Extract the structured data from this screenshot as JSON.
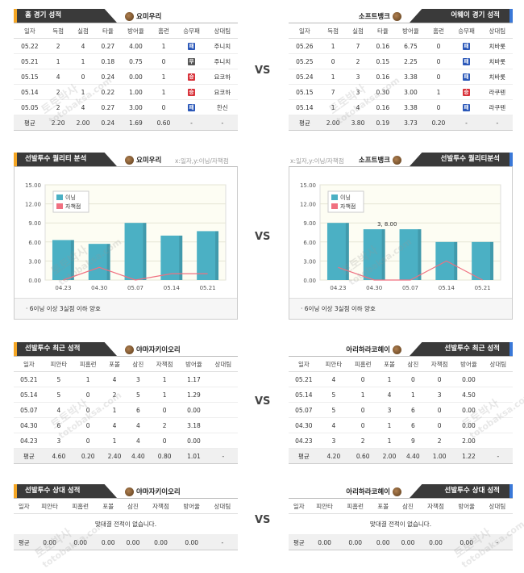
{
  "vs_label": "VS",
  "home_record": {
    "title": "홈 경기 성적",
    "team": "요미우리",
    "headers": [
      "일자",
      "득점",
      "실점",
      "타율",
      "방어율",
      "홈런",
      "승무패",
      "상대팀"
    ],
    "rows": [
      [
        "05.22",
        "2",
        "4",
        "0.27",
        "4.00",
        "1",
        "패",
        "주니치"
      ],
      [
        "05.21",
        "1",
        "1",
        "0.18",
        "0.75",
        "0",
        "무",
        "주니치"
      ],
      [
        "05.15",
        "4",
        "0",
        "0.24",
        "0.00",
        "1",
        "승",
        "요코하"
      ],
      [
        "05.14",
        "2",
        "1",
        "0.22",
        "1.00",
        "1",
        "승",
        "요코하"
      ],
      [
        "05.05",
        "2",
        "4",
        "0.27",
        "3.00",
        "0",
        "패",
        "한신"
      ]
    ],
    "avg": [
      "평균",
      "2.20",
      "2.00",
      "0.24",
      "1.69",
      "0.60",
      "-",
      "-"
    ]
  },
  "away_record": {
    "title": "어웨이 경기 성적",
    "team": "소프트뱅크",
    "headers": [
      "일자",
      "득점",
      "실점",
      "타율",
      "방어율",
      "홈런",
      "승무패",
      "상대팀"
    ],
    "rows": [
      [
        "05.26",
        "1",
        "7",
        "0.16",
        "6.75",
        "0",
        "패",
        "치바롯"
      ],
      [
        "05.25",
        "0",
        "2",
        "0.15",
        "2.25",
        "0",
        "패",
        "치바롯"
      ],
      [
        "05.24",
        "1",
        "3",
        "0.16",
        "3.38",
        "0",
        "패",
        "치바롯"
      ],
      [
        "05.15",
        "7",
        "3",
        "0.30",
        "3.00",
        "1",
        "승",
        "라쿠텐"
      ],
      [
        "05.14",
        "1",
        "4",
        "0.16",
        "3.38",
        "0",
        "패",
        "라쿠텐"
      ]
    ],
    "avg": [
      "평균",
      "2.00",
      "3.80",
      "0.19",
      "3.73",
      "0.20",
      "-",
      "-"
    ]
  },
  "quality_left": {
    "title": "선발투수 퀄리티 분석",
    "team": "요미우리",
    "sub": "x:일자,y:이닝/자책점",
    "note": "· 6이닝 이상 3실점 이하 양호"
  },
  "quality_right": {
    "title": "선발투수 퀄리티분석",
    "team": "소프트뱅크",
    "sub": "x:일자,y:이닝/자책점",
    "note": "· 6이닝 이상 3실점 이하 양호"
  },
  "chart_data": [
    {
      "type": "bar",
      "categories": [
        "04.23",
        "04.30",
        "05.07",
        "05.14",
        "05.21"
      ],
      "series": [
        {
          "name": "이닝",
          "values": [
            6.3,
            5.7,
            9.0,
            7.0,
            7.7
          ],
          "color": "#4bb0c4"
        },
        {
          "name": "자책점",
          "values": [
            0,
            2,
            0,
            1,
            1
          ],
          "color": "#f07080"
        }
      ],
      "ylim": [
        0,
        15
      ],
      "yticks": [
        "0.00",
        "3.00",
        "6.00",
        "9.00",
        "12.00",
        "15.00"
      ],
      "legend": "top-left",
      "annotation": ""
    },
    {
      "type": "bar",
      "categories": [
        "04.23",
        "04.30",
        "05.07",
        "05.14",
        "05.21"
      ],
      "series": [
        {
          "name": "이닝",
          "values": [
            9.0,
            8.0,
            8.0,
            6.0,
            6.0
          ],
          "color": "#4bb0c4"
        },
        {
          "name": "자책점",
          "values": [
            2,
            0,
            0,
            3,
            0
          ],
          "color": "#f07080"
        }
      ],
      "ylim": [
        0,
        15
      ],
      "yticks": [
        "0.00",
        "3.00",
        "6.00",
        "9.00",
        "12.00",
        "15.00"
      ],
      "legend": "top-left",
      "annotation": "3, 8.00"
    }
  ],
  "recent_left": {
    "title": "선발투수 최근 성적",
    "team": "야마자키이오리",
    "headers": [
      "일자",
      "피안타",
      "피홈런",
      "포볼",
      "삼진",
      "자책점",
      "방어율",
      "상대팀"
    ],
    "rows": [
      [
        "05.21",
        "5",
        "1",
        "4",
        "3",
        "1",
        "1.17",
        ""
      ],
      [
        "05.14",
        "5",
        "0",
        "2",
        "5",
        "1",
        "1.29",
        ""
      ],
      [
        "05.07",
        "4",
        "0",
        "1",
        "6",
        "0",
        "0.00",
        ""
      ],
      [
        "04.30",
        "6",
        "0",
        "4",
        "4",
        "2",
        "3.18",
        ""
      ],
      [
        "04.23",
        "3",
        "0",
        "1",
        "4",
        "0",
        "0.00",
        ""
      ]
    ],
    "avg": [
      "평균",
      "4.60",
      "0.20",
      "2.40",
      "4.40",
      "0.80",
      "1.01",
      "-"
    ]
  },
  "recent_right": {
    "title": "선발투수 최근 성적",
    "team": "아리하라코헤이",
    "headers": [
      "일자",
      "피안타",
      "피홈런",
      "포볼",
      "삼진",
      "자책점",
      "방어율",
      "상대팀"
    ],
    "rows": [
      [
        "05.21",
        "4",
        "0",
        "1",
        "0",
        "0",
        "0.00",
        ""
      ],
      [
        "05.14",
        "5",
        "1",
        "4",
        "1",
        "3",
        "4.50",
        ""
      ],
      [
        "05.07",
        "5",
        "0",
        "3",
        "6",
        "0",
        "0.00",
        ""
      ],
      [
        "04.30",
        "4",
        "0",
        "1",
        "6",
        "0",
        "0.00",
        ""
      ],
      [
        "04.23",
        "3",
        "2",
        "1",
        "9",
        "2",
        "2.00",
        ""
      ]
    ],
    "avg": [
      "평균",
      "4.20",
      "0.60",
      "2.00",
      "4.40",
      "1.00",
      "1.22",
      "-"
    ]
  },
  "vs_left": {
    "title": "선발투수 상대 성적",
    "team": "야마자키이오리",
    "headers": [
      "일자",
      "피안타",
      "피홈런",
      "포볼",
      "삼진",
      "자책점",
      "방어율",
      "상대팀"
    ],
    "empty": "맞대결 전적이 없습니다.",
    "avg": [
      "평균",
      "0.00",
      "0.00",
      "0.00",
      "0.00",
      "0.00",
      "0.00",
      "-"
    ]
  },
  "vs_right": {
    "title": "선발투수 상대 성적",
    "team": "아리하라코헤이",
    "headers": [
      "일자",
      "피안타",
      "피홈런",
      "포볼",
      "삼진",
      "자책점",
      "방어율",
      "상대팀"
    ],
    "empty": "맞대결 전적이 없습니다.",
    "avg": [
      "평균",
      "0.00",
      "0.00",
      "0.00",
      "0.00",
      "0.00",
      "0.00",
      "-"
    ]
  },
  "watermark": {
    "line1": "토토박사",
    "line2": "totobaksa.com"
  }
}
